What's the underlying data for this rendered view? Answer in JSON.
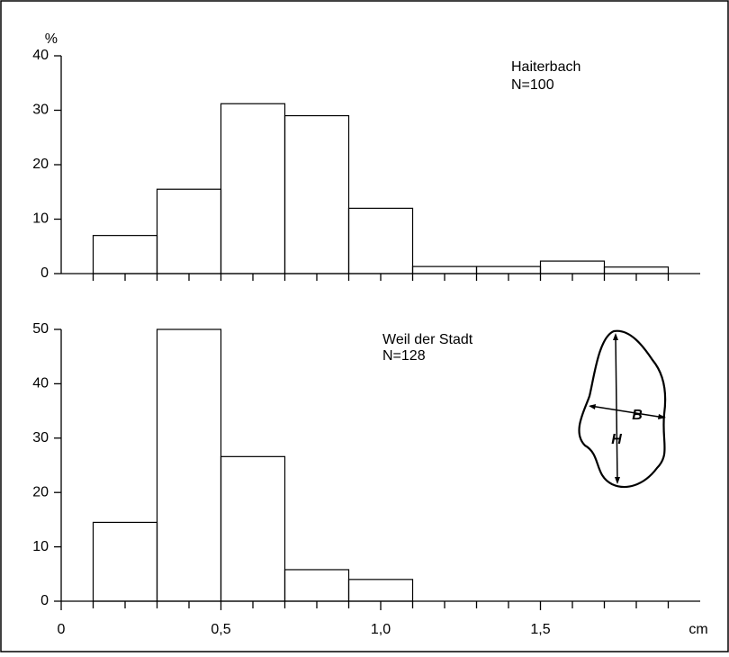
{
  "chart_data": [
    {
      "type": "histogram",
      "ylabel": "%",
      "bins": [
        0.1,
        0.3,
        0.5,
        0.7,
        0.9,
        1.1,
        1.3,
        1.5,
        1.7,
        1.9
      ],
      "values": [
        7,
        15.5,
        31.2,
        29,
        12,
        1.3,
        1.3,
        2.3,
        1.2
      ],
      "ylim": [
        0,
        40
      ],
      "yticks": [
        0,
        10,
        20,
        30,
        40
      ],
      "xlim": [
        0,
        2.0
      ],
      "minor_ticks": [
        0.1,
        0.2,
        0.3,
        0.4,
        0.5,
        0.6,
        0.7,
        0.8,
        0.9,
        1.0,
        1.1,
        1.2,
        1.3,
        1.4,
        1.5,
        1.6,
        1.7,
        1.8,
        1.9
      ],
      "annotations": [
        "Haiterbach",
        "N=100"
      ]
    },
    {
      "type": "histogram",
      "xlabel": "cm",
      "bins": [
        0.1,
        0.3,
        0.5,
        0.7,
        0.9,
        1.1
      ],
      "values": [
        14.5,
        50,
        26.6,
        5.8,
        4
      ],
      "ylim": [
        0,
        50
      ],
      "yticks": [
        0,
        10,
        20,
        30,
        40,
        50
      ],
      "xlim": [
        0,
        2.0
      ],
      "xticks": [
        0,
        {
          "value": 0.5,
          "label": "0,5"
        },
        {
          "value": 1.0,
          "label": "1,0"
        },
        {
          "value": 1.5,
          "label": "1,5"
        }
      ],
      "minor_ticks": [
        0.1,
        0.2,
        0.3,
        0.4,
        0.6,
        0.7,
        0.8,
        0.9,
        1.1,
        1.2,
        1.3,
        1.4,
        1.6,
        1.7,
        1.8,
        1.9
      ],
      "annotations": [
        "Weil der Stadt",
        "N=128"
      ],
      "inset_labels": [
        "H",
        "B"
      ]
    }
  ]
}
